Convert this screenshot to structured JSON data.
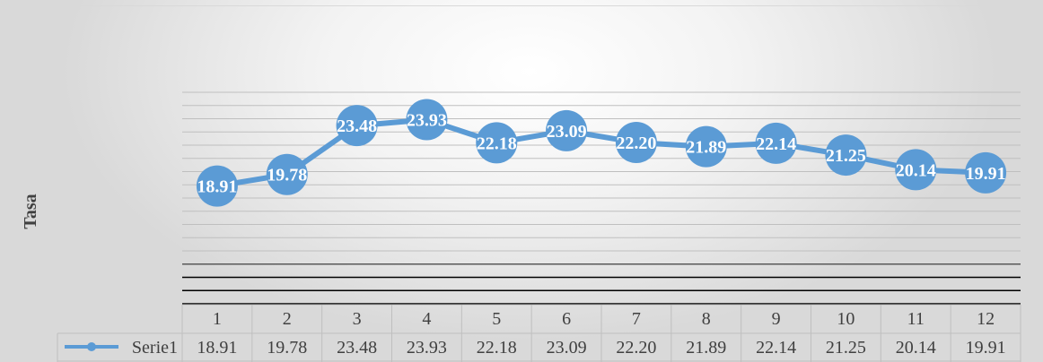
{
  "chart_data": {
    "type": "line",
    "categories": [
      "1",
      "2",
      "3",
      "4",
      "5",
      "6",
      "7",
      "8",
      "9",
      "10",
      "11",
      "12"
    ],
    "series": [
      {
        "name": "Serie1",
        "values": [
          18.91,
          19.78,
          23.48,
          23.93,
          22.18,
          23.09,
          22.2,
          21.89,
          22.14,
          21.25,
          20.14,
          19.91
        ],
        "labels": [
          "18.91",
          "19.78",
          "23.48",
          "23.93",
          "22.18",
          "23.09",
          "22.20",
          "21.89",
          "22.14",
          "21.25",
          "20.14",
          "19.91"
        ],
        "color": "#5b9bd5"
      }
    ],
    "ylabel": "Tasa",
    "xlabel": "",
    "ylim": [
      10,
      26
    ],
    "grid": true,
    "data_table": true,
    "legend": "data-table-row"
  }
}
